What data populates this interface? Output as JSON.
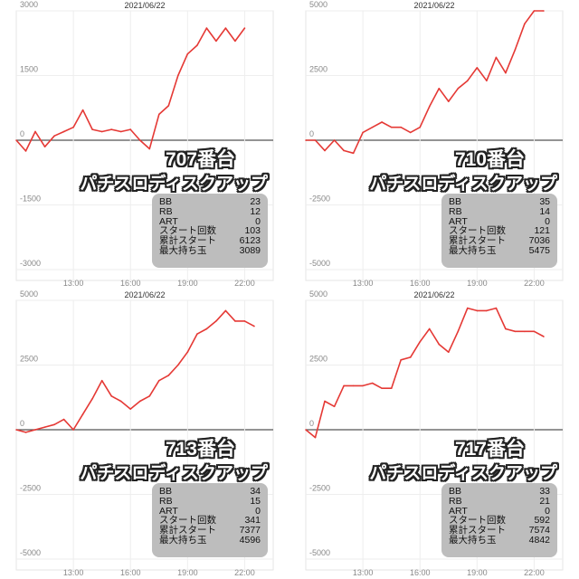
{
  "chart_data": [
    {
      "type": "line",
      "date": "2021/06/22",
      "machine": "707番台",
      "model": "パチスロディスクアップ",
      "y_ticks": [
        3000,
        1500,
        0,
        -1500,
        -3000
      ],
      "ylim": [
        -3000,
        3000
      ],
      "x_ticks": [
        "13:00",
        "16:00",
        "19:00",
        "22:00"
      ],
      "x_hours": [
        10,
        10.5,
        11,
        11.5,
        12,
        12.5,
        13,
        13.5,
        14,
        14.5,
        15,
        15.5,
        16,
        16.5,
        17,
        17.5,
        18,
        18.5,
        19,
        19.5,
        20,
        20.5,
        21,
        21.5,
        22
      ],
      "values": [
        0,
        -250,
        200,
        -150,
        100,
        200,
        300,
        700,
        250,
        200,
        250,
        200,
        250,
        0,
        -200,
        600,
        800,
        1500,
        2000,
        2200,
        2600,
        2300,
        2600,
        2300,
        2600
      ],
      "line_color": "#e53935",
      "stats": [
        {
          "label": "BB",
          "value": "23"
        },
        {
          "label": "RB",
          "value": "12"
        },
        {
          "label": "ART",
          "value": "0"
        },
        {
          "label": "スタート回数",
          "value": "103"
        },
        {
          "label": "累計スタート",
          "value": "6123"
        },
        {
          "label": "最大持ち玉",
          "value": "3089"
        }
      ]
    },
    {
      "type": "line",
      "date": "2021/06/22",
      "machine": "710番台",
      "model": "パチスロディスクアップ",
      "y_ticks": [
        5000,
        2500,
        0,
        -2500,
        -5000
      ],
      "ylim": [
        -5000,
        5000
      ],
      "x_ticks": [
        "13:00",
        "16:00",
        "19:00",
        "22:00"
      ],
      "x_hours": [
        10,
        10.5,
        11,
        11.5,
        12,
        12.5,
        13,
        13.5,
        14,
        14.5,
        15,
        15.5,
        16,
        16.5,
        17,
        17.5,
        18,
        18.5,
        19,
        19.5,
        20,
        20.5,
        21,
        21.5,
        22,
        22.5
      ],
      "values": [
        0,
        0,
        -400,
        0,
        -400,
        -500,
        300,
        500,
        700,
        500,
        500,
        300,
        500,
        1300,
        2000,
        1500,
        2000,
        2300,
        2800,
        2300,
        3200,
        2600,
        3500,
        4500,
        5000,
        5000
      ],
      "line_color": "#e53935",
      "stats": [
        {
          "label": "BB",
          "value": "35"
        },
        {
          "label": "RB",
          "value": "14"
        },
        {
          "label": "ART",
          "value": "0"
        },
        {
          "label": "スタート回数",
          "value": "121"
        },
        {
          "label": "累計スタート",
          "value": "7036"
        },
        {
          "label": "最大持ち玉",
          "value": "5475"
        }
      ]
    },
    {
      "type": "line",
      "date": "2021/06/22",
      "machine": "713番台",
      "model": "パチスロディスクアップ",
      "y_ticks": [
        5000,
        2500,
        0,
        -2500,
        -5000
      ],
      "ylim": [
        -5000,
        5000
      ],
      "x_ticks": [
        "13:00",
        "16:00",
        "19:00",
        "22:00"
      ],
      "x_hours": [
        10,
        10.5,
        11,
        11.5,
        12,
        12.5,
        13,
        13.5,
        14,
        14.5,
        15,
        15.5,
        16,
        16.5,
        17,
        17.5,
        18,
        18.5,
        19,
        19.5,
        20,
        20.5,
        21,
        21.5,
        22,
        22.5
      ],
      "values": [
        0,
        -100,
        0,
        100,
        200,
        400,
        0,
        600,
        1200,
        1900,
        1300,
        1100,
        800,
        1100,
        1300,
        1900,
        2100,
        2500,
        3000,
        3700,
        3900,
        4200,
        4600,
        4200,
        4200,
        4000
      ],
      "line_color": "#e53935",
      "stats": [
        {
          "label": "BB",
          "value": "34"
        },
        {
          "label": "RB",
          "value": "15"
        },
        {
          "label": "ART",
          "value": "0"
        },
        {
          "label": "スタート回数",
          "value": "341"
        },
        {
          "label": "累計スタート",
          "value": "7377"
        },
        {
          "label": "最大持ち玉",
          "value": "4596"
        }
      ]
    },
    {
      "type": "line",
      "date": "2021/06/22",
      "machine": "717番台",
      "model": "パチスロディスクアップ",
      "y_ticks": [
        5000,
        2500,
        0,
        -2500,
        -5000
      ],
      "ylim": [
        -5000,
        5000
      ],
      "x_hours": [
        10,
        10.5,
        11,
        11.5,
        12,
        12.5,
        13,
        13.5,
        14,
        14.5,
        15,
        15.5,
        16,
        16.5,
        17,
        17.5,
        18,
        18.5,
        19,
        19.5,
        20,
        20.5,
        21,
        21.5,
        22,
        22.5
      ],
      "x_ticks": [
        "13:00",
        "16:00",
        "19:00",
        "22:00"
      ],
      "values": [
        0,
        -300,
        1100,
        900,
        1700,
        1700,
        1700,
        1800,
        1600,
        1600,
        2700,
        2800,
        3400,
        3900,
        3300,
        3000,
        3800,
        4700,
        4600,
        4600,
        4700,
        3900,
        3800,
        3800,
        3800,
        3600
      ],
      "line_color": "#e53935",
      "stats": [
        {
          "label": "BB",
          "value": "33"
        },
        {
          "label": "RB",
          "value": "21"
        },
        {
          "label": "ART",
          "value": "0"
        },
        {
          "label": "スタート回数",
          "value": "592"
        },
        {
          "label": "累計スタート",
          "value": "7574"
        },
        {
          "label": "最大持ち玉",
          "value": "4842"
        }
      ]
    }
  ]
}
